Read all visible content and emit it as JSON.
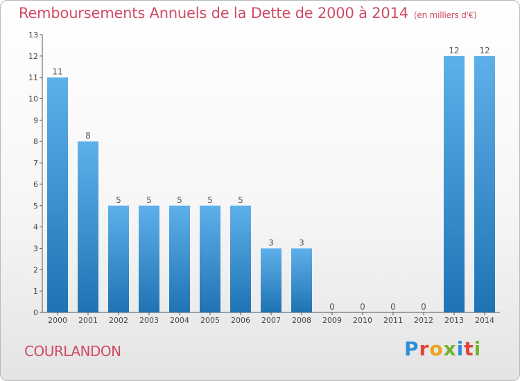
{
  "title": "Remboursements Annuels de la Dette de 2000 à 2014",
  "unit": "(en milliers d'€)",
  "commune": "COURLANDON",
  "logo": {
    "letters": [
      "P",
      "r",
      "o",
      "x",
      "i",
      "t",
      "i"
    ],
    "colors": [
      "#2c8fd8",
      "#e0423c",
      "#f0a01e",
      "#73b330",
      "#2c8fd8",
      "#e0423c",
      "#73b330"
    ]
  },
  "colors": {
    "bar_light": "#5eb0ea",
    "bar_dark": "#1f73b3",
    "title": "#d04a63",
    "axis": "#555555"
  },
  "chart_data": {
    "type": "bar",
    "categories": [
      "2000",
      "2001",
      "2002",
      "2003",
      "2004",
      "2005",
      "2006",
      "2007",
      "2008",
      "2009",
      "2010",
      "2011",
      "2012",
      "2013",
      "2014"
    ],
    "values": [
      11,
      8,
      5,
      5,
      5,
      5,
      5,
      3,
      3,
      0,
      0,
      0,
      0,
      12,
      12
    ],
    "data_labels": [
      "11",
      "8",
      "5",
      "5",
      "5",
      "5",
      "5",
      "3",
      "3",
      "0",
      "0",
      "0",
      "0",
      "12",
      "12"
    ],
    "yticks": [
      0,
      1,
      2,
      3,
      4,
      5,
      6,
      7,
      8,
      9,
      10,
      11,
      12,
      13
    ],
    "ylim": [
      0,
      13
    ],
    "xlabel": "",
    "ylabel": "",
    "grid": false,
    "legend": "none"
  }
}
